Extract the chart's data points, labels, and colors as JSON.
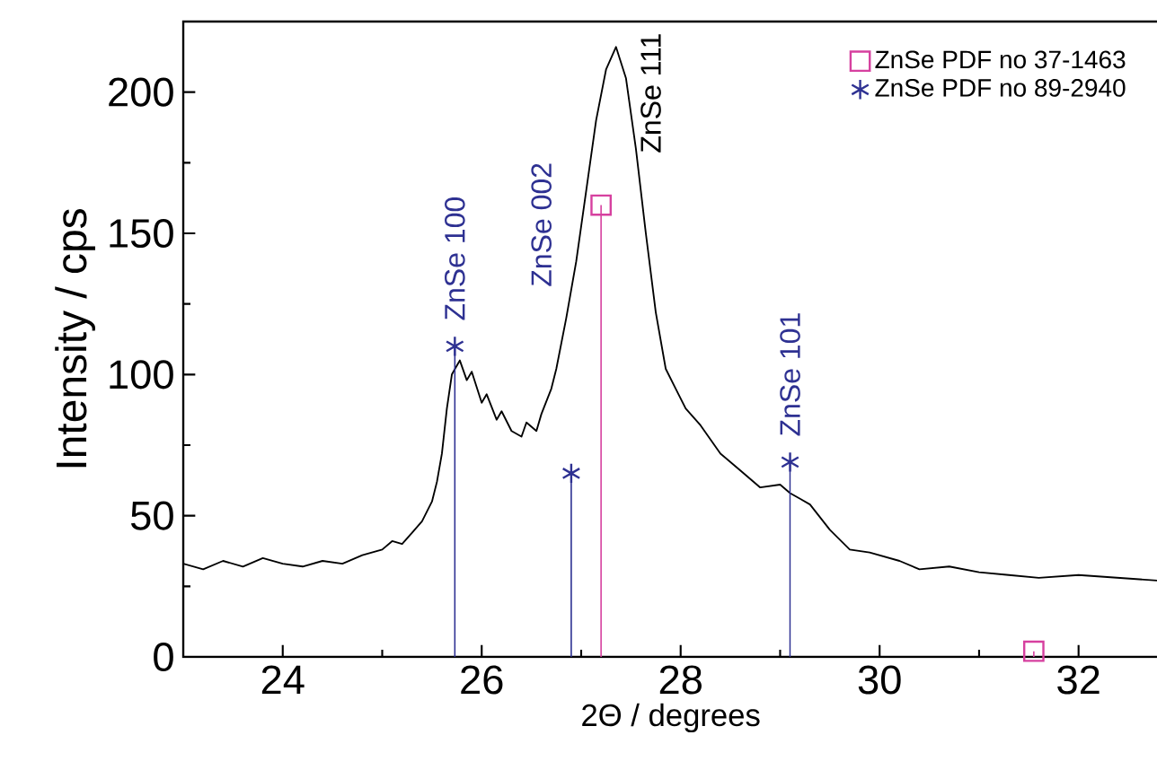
{
  "chart_data": {
    "type": "line",
    "xlabel": "2Θ / degrees",
    "ylabel": "Intensity / cps",
    "xlim": [
      23,
      32.8
    ],
    "ylim": [
      0,
      225
    ],
    "xticks": [
      24,
      26,
      28,
      30,
      32
    ],
    "yticks": [
      0,
      50,
      100,
      150,
      200
    ],
    "legend": "top right",
    "grid": false,
    "annotations": [
      "ZnSe 100",
      "ZnSe 002",
      "ZnSe 111",
      "ZnSe 101"
    ],
    "series": [
      {
        "color": "#000000",
        "marker": "none",
        "x": [
          23.0,
          23.2,
          23.4,
          23.6,
          23.8,
          24.0,
          24.2,
          24.4,
          24.6,
          24.8,
          25.0,
          25.1,
          25.2,
          25.3,
          25.4,
          25.5,
          25.55,
          25.6,
          25.65,
          25.7,
          25.78,
          25.85,
          25.9,
          26.0,
          26.05,
          26.15,
          26.2,
          26.3,
          26.4,
          26.45,
          26.55,
          26.6,
          26.7,
          26.75,
          26.85,
          26.95,
          27.05,
          27.15,
          27.25,
          27.35,
          27.45,
          27.55,
          27.65,
          27.75,
          27.85,
          27.95,
          28.05,
          28.2,
          28.4,
          28.6,
          28.8,
          29.0,
          29.1,
          29.2,
          29.3,
          29.5,
          29.7,
          29.9,
          30.2,
          30.4,
          30.7,
          31.0,
          31.3,
          31.6,
          32.0,
          32.4,
          32.8
        ],
        "values": [
          33,
          31,
          34,
          32,
          35,
          33,
          32,
          34,
          33,
          36,
          38,
          41,
          40,
          44,
          48,
          55,
          62,
          72,
          88,
          100,
          105,
          98,
          101,
          90,
          93,
          84,
          87,
          80,
          78,
          83,
          80,
          86,
          95,
          102,
          120,
          140,
          165,
          190,
          208,
          216,
          205,
          180,
          150,
          122,
          102,
          95,
          88,
          82,
          72,
          66,
          60,
          61,
          58,
          56,
          54,
          45,
          38,
          37,
          34,
          31,
          32,
          30,
          29,
          28,
          29,
          28,
          27
        ]
      },
      {
        "type": "lollipop",
        "name": "ZnSe PDF no 37-1463",
        "color": "#d6409f",
        "marker": "square",
        "x": [
          27.2,
          31.55
        ],
        "values": [
          160,
          2
        ]
      },
      {
        "type": "lollipop",
        "name": "ZnSe PDF no 89-2940",
        "color": "#2e3192",
        "marker": "cross",
        "x": [
          25.73,
          26.9,
          29.1
        ],
        "values": [
          110,
          65,
          69
        ]
      }
    ]
  }
}
